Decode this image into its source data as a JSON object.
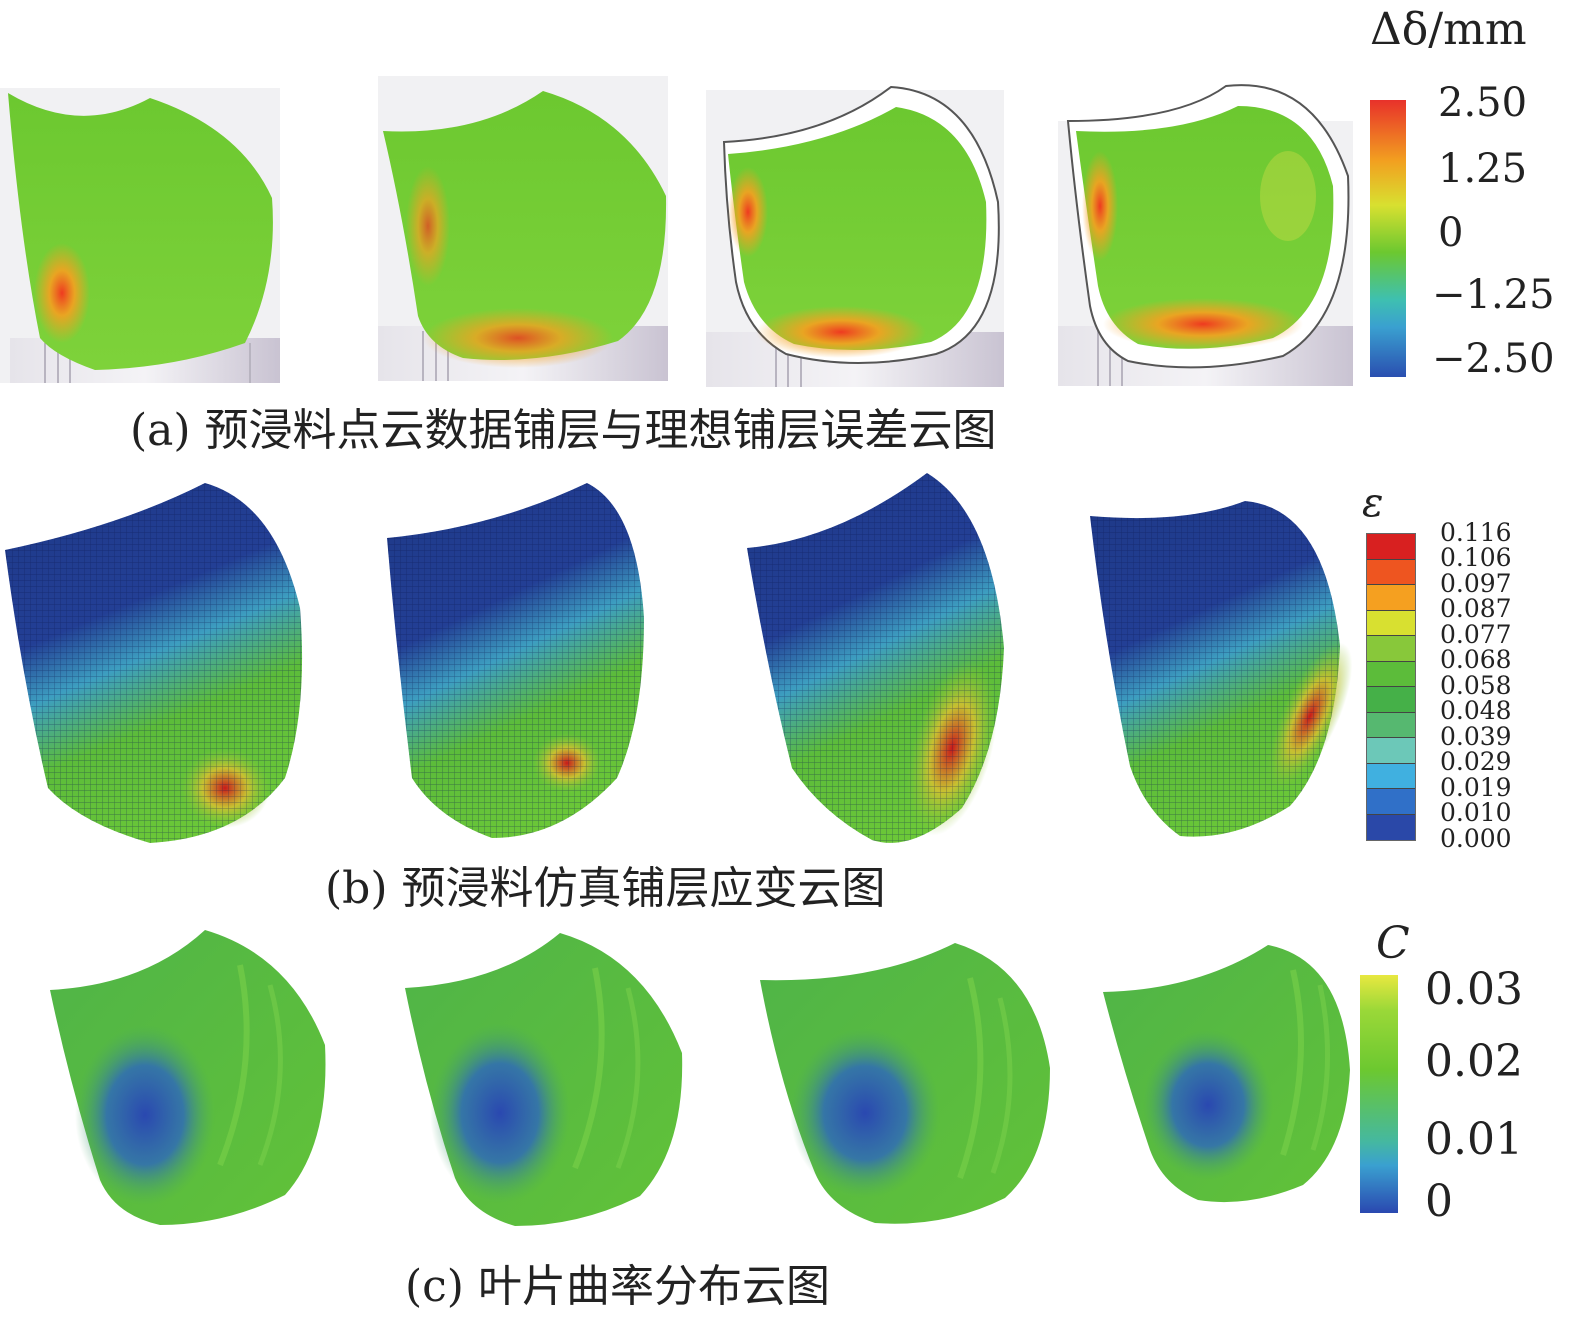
{
  "captions": {
    "a": "(a) 预浸料点云数据铺层与理想铺层误差云图",
    "b": "(b) 预浸料仿真铺层应变云图",
    "c": "(c) 叶片曲率分布云图"
  },
  "legend_a": {
    "title": "Δδ/mm",
    "ticks": [
      "2.50",
      "1.25",
      "0",
      "−1.25",
      "−2.50"
    ],
    "colors": [
      "#e8312a",
      "#f2a020",
      "#6cc830",
      "#3aa0d0",
      "#2a4fb0"
    ]
  },
  "legend_b": {
    "title": "ε",
    "ticks": [
      "0.116",
      "0.106",
      "0.097",
      "0.087",
      "0.077",
      "0.068",
      "0.058",
      "0.048",
      "0.039",
      "0.029",
      "0.019",
      "0.010",
      "0.000"
    ],
    "colors": [
      "#d82020",
      "#ee5520",
      "#f5a020",
      "#d8e030",
      "#88c83a",
      "#5cbc3a",
      "#45b048",
      "#56b870",
      "#6cc8b8",
      "#40b0e0",
      "#3070c8",
      "#2a48a8"
    ]
  },
  "legend_c": {
    "title": "C",
    "ticks": [
      "0.03",
      "0.02",
      "0.01",
      "0"
    ],
    "colors": [
      "#e8e840",
      "#6cc830",
      "#45b8a0",
      "#2a48b0"
    ]
  },
  "panels": {
    "a": [
      "deviation-map-1",
      "deviation-map-2",
      "deviation-map-3",
      "deviation-map-4"
    ],
    "b": [
      "strain-map-1",
      "strain-map-2",
      "strain-map-3",
      "strain-map-4"
    ],
    "c": [
      "curvature-map-1",
      "curvature-map-2",
      "curvature-map-3",
      "curvature-map-4"
    ]
  }
}
